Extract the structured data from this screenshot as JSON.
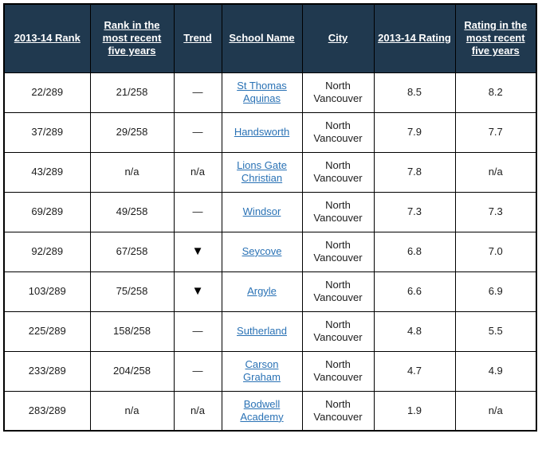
{
  "colors": {
    "header_bg": "#20394f",
    "header_text": "#ffffff",
    "cell_text": "#1c1c1c",
    "link": "#2a72b5",
    "border": "#000000",
    "page_bg": "#ffffff"
  },
  "icons": {
    "trend_down_icon": "▼",
    "trend_flat_dash": "—"
  },
  "table": {
    "columns": [
      {
        "key": "rank",
        "label": "2013-14 Rank"
      },
      {
        "key": "rank_recent",
        "label": "Rank in the most recent five years"
      },
      {
        "key": "trend",
        "label": "Trend"
      },
      {
        "key": "school",
        "label": "School Name"
      },
      {
        "key": "city",
        "label": "City"
      },
      {
        "key": "rating",
        "label": "2013-14 Rating"
      },
      {
        "key": "rating_recent",
        "label": "Rating in the most recent five years"
      }
    ],
    "rows": [
      {
        "rank": "22/289",
        "rank_recent": "21/258",
        "trend": "—",
        "trend_type": "flat",
        "school": "St Thomas Aquinas",
        "city": "North Vancouver",
        "rating": "8.5",
        "rating_recent": "8.2"
      },
      {
        "rank": "37/289",
        "rank_recent": "29/258",
        "trend": "—",
        "trend_type": "flat",
        "school": "Handsworth",
        "city": "North Vancouver",
        "rating": "7.9",
        "rating_recent": "7.7"
      },
      {
        "rank": "43/289",
        "rank_recent": "n/a",
        "trend": "n/a",
        "trend_type": "na",
        "school": "Lions Gate Christian",
        "city": "North Vancouver",
        "rating": "7.8",
        "rating_recent": "n/a"
      },
      {
        "rank": "69/289",
        "rank_recent": "49/258",
        "trend": "—",
        "trend_type": "flat",
        "school": "Windsor",
        "city": "North Vancouver",
        "rating": "7.3",
        "rating_recent": "7.3"
      },
      {
        "rank": "92/289",
        "rank_recent": "67/258",
        "trend": "▼",
        "trend_type": "down",
        "school": "Seycove",
        "city": "North Vancouver",
        "rating": "6.8",
        "rating_recent": "7.0"
      },
      {
        "rank": "103/289",
        "rank_recent": "75/258",
        "trend": "▼",
        "trend_type": "down",
        "school": "Argyle",
        "city": "North Vancouver",
        "rating": "6.6",
        "rating_recent": "6.9"
      },
      {
        "rank": "225/289",
        "rank_recent": "158/258",
        "trend": "—",
        "trend_type": "flat",
        "school": "Sutherland",
        "city": "North Vancouver",
        "rating": "4.8",
        "rating_recent": "5.5"
      },
      {
        "rank": "233/289",
        "rank_recent": "204/258",
        "trend": "—",
        "trend_type": "flat",
        "school": "Carson Graham",
        "city": "North Vancouver",
        "rating": "4.7",
        "rating_recent": "4.9"
      },
      {
        "rank": "283/289",
        "rank_recent": "n/a",
        "trend": "n/a",
        "trend_type": "na",
        "school": "Bodwell Academy",
        "city": "North Vancouver",
        "rating": "1.9",
        "rating_recent": "n/a"
      }
    ]
  }
}
